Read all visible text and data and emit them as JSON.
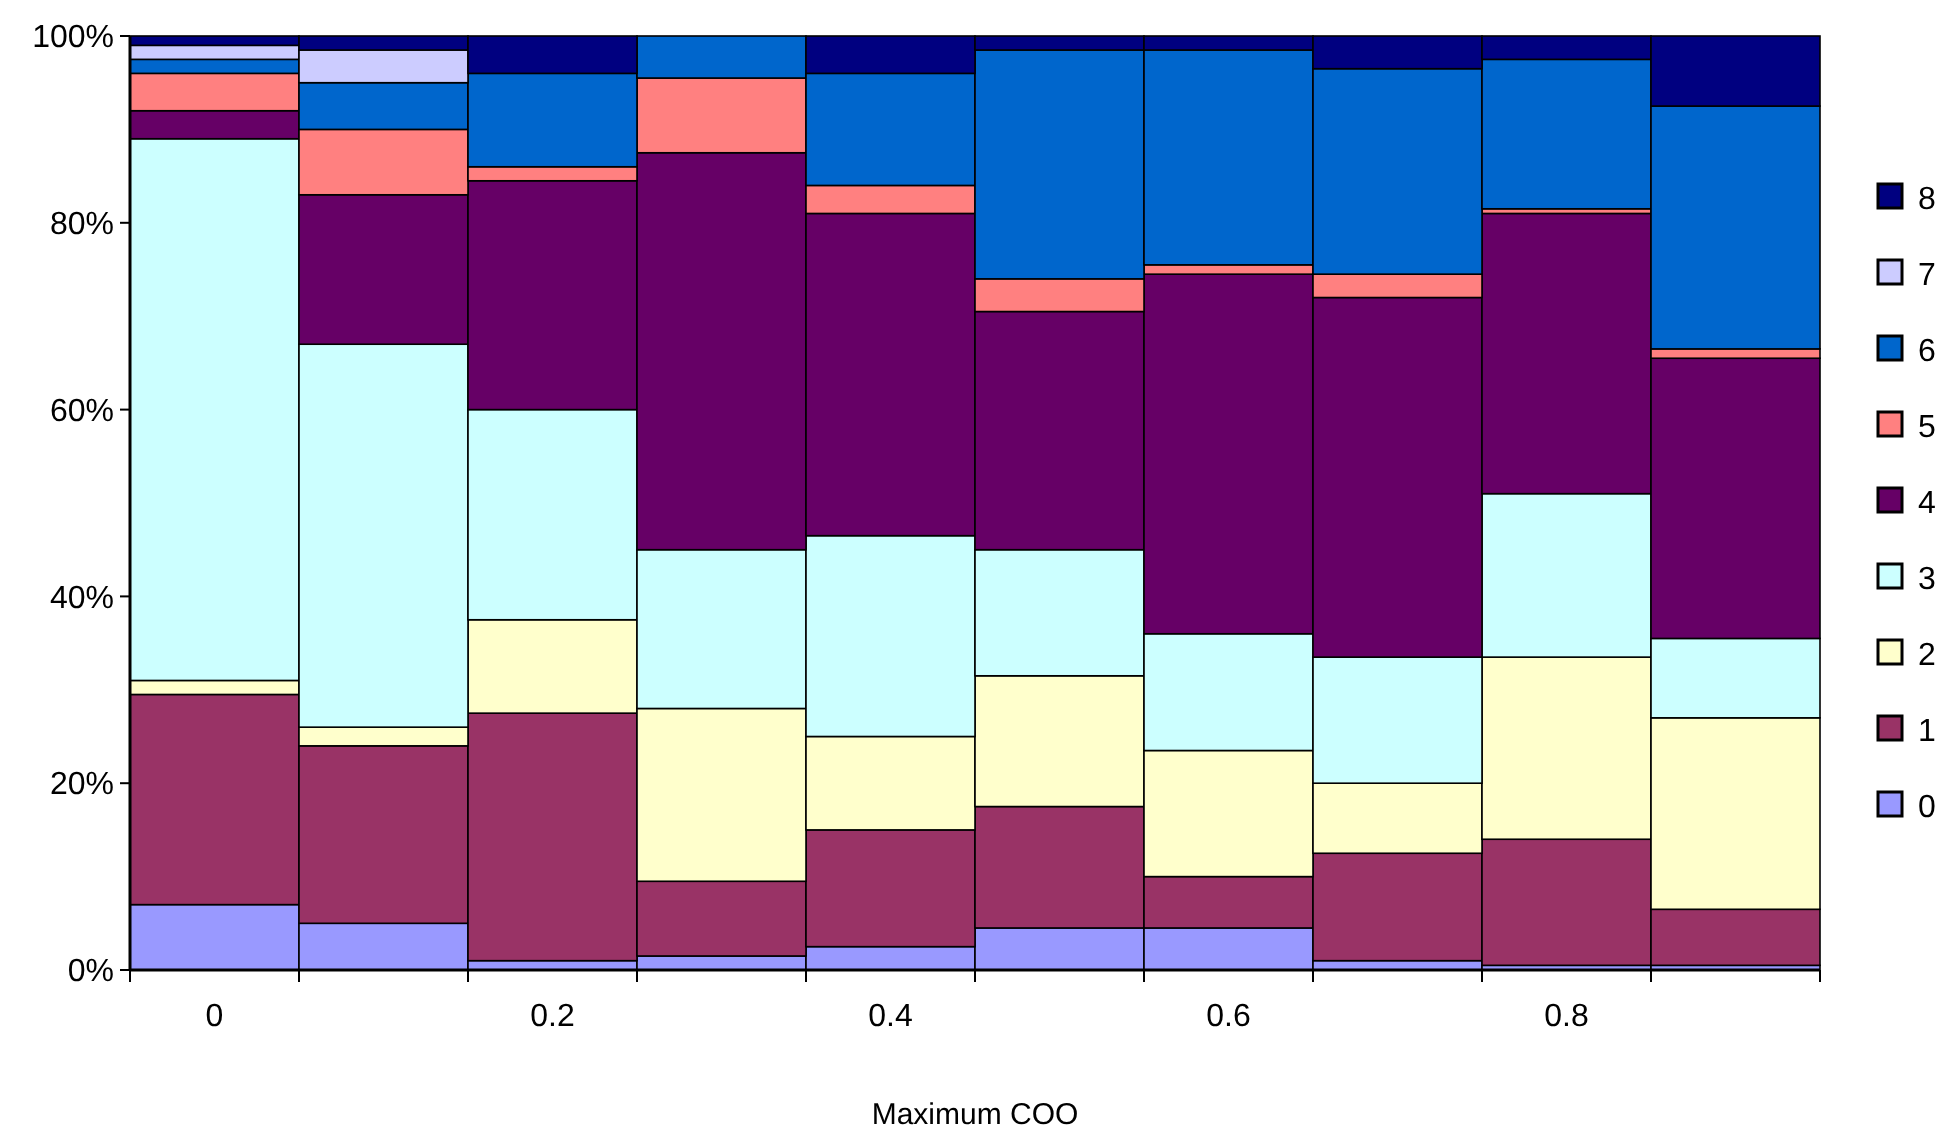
{
  "chart_data": {
    "type": "bar",
    "stacked": true,
    "xlabel": "Maximum COO",
    "categories": [
      "0",
      null,
      "0.2",
      null,
      "0.4",
      null,
      "0.6",
      null,
      "0.8",
      null
    ],
    "ylim": [
      0,
      100
    ],
    "yticks": [
      {
        "value": 0,
        "label": "0%"
      },
      {
        "value": 20,
        "label": "20%"
      },
      {
        "value": 40,
        "label": "40%"
      },
      {
        "value": 60,
        "label": "60%"
      },
      {
        "value": 80,
        "label": "80%"
      },
      {
        "value": 100,
        "label": "100%"
      }
    ],
    "legend": "right",
    "series": [
      {
        "name": "0",
        "color": "#9999ff",
        "values": [
          7,
          5,
          1,
          1.5,
          2.5,
          4.5,
          4.5,
          1,
          0.5,
          0.5
        ]
      },
      {
        "name": "1",
        "color": "#993366",
        "values": [
          22.5,
          19,
          26.5,
          8,
          12.5,
          13,
          5.5,
          11.5,
          13.5,
          6
        ]
      },
      {
        "name": "2",
        "color": "#ffffcc",
        "values": [
          1.5,
          2,
          10,
          18.5,
          10,
          14,
          13.5,
          7.5,
          19.5,
          20.5
        ]
      },
      {
        "name": "3",
        "color": "#ccffff",
        "values": [
          58,
          41,
          22.5,
          17,
          21.5,
          13.5,
          12.5,
          13.5,
          17.5,
          8.5
        ]
      },
      {
        "name": "4",
        "color": "#660066",
        "values": [
          3,
          16,
          24.5,
          42.5,
          34.5,
          25.5,
          38.5,
          38.5,
          30,
          30
        ]
      },
      {
        "name": "5",
        "color": "#ff8080",
        "values": [
          4,
          7,
          1.5,
          8,
          3,
          3.5,
          1,
          2.5,
          0.5,
          1
        ]
      },
      {
        "name": "6",
        "color": "#0066cc",
        "values": [
          1.5,
          5,
          10,
          4.5,
          12,
          24.5,
          23,
          22,
          16,
          26
        ]
      },
      {
        "name": "7",
        "color": "#ccccff",
        "values": [
          1.5,
          3.5,
          0,
          0,
          0,
          0,
          0,
          0,
          0,
          0
        ]
      },
      {
        "name": "8",
        "color": "#000080",
        "values": [
          1,
          1.5,
          4,
          0,
          4,
          1.5,
          1.5,
          3.5,
          2.5,
          7.5
        ]
      }
    ]
  }
}
